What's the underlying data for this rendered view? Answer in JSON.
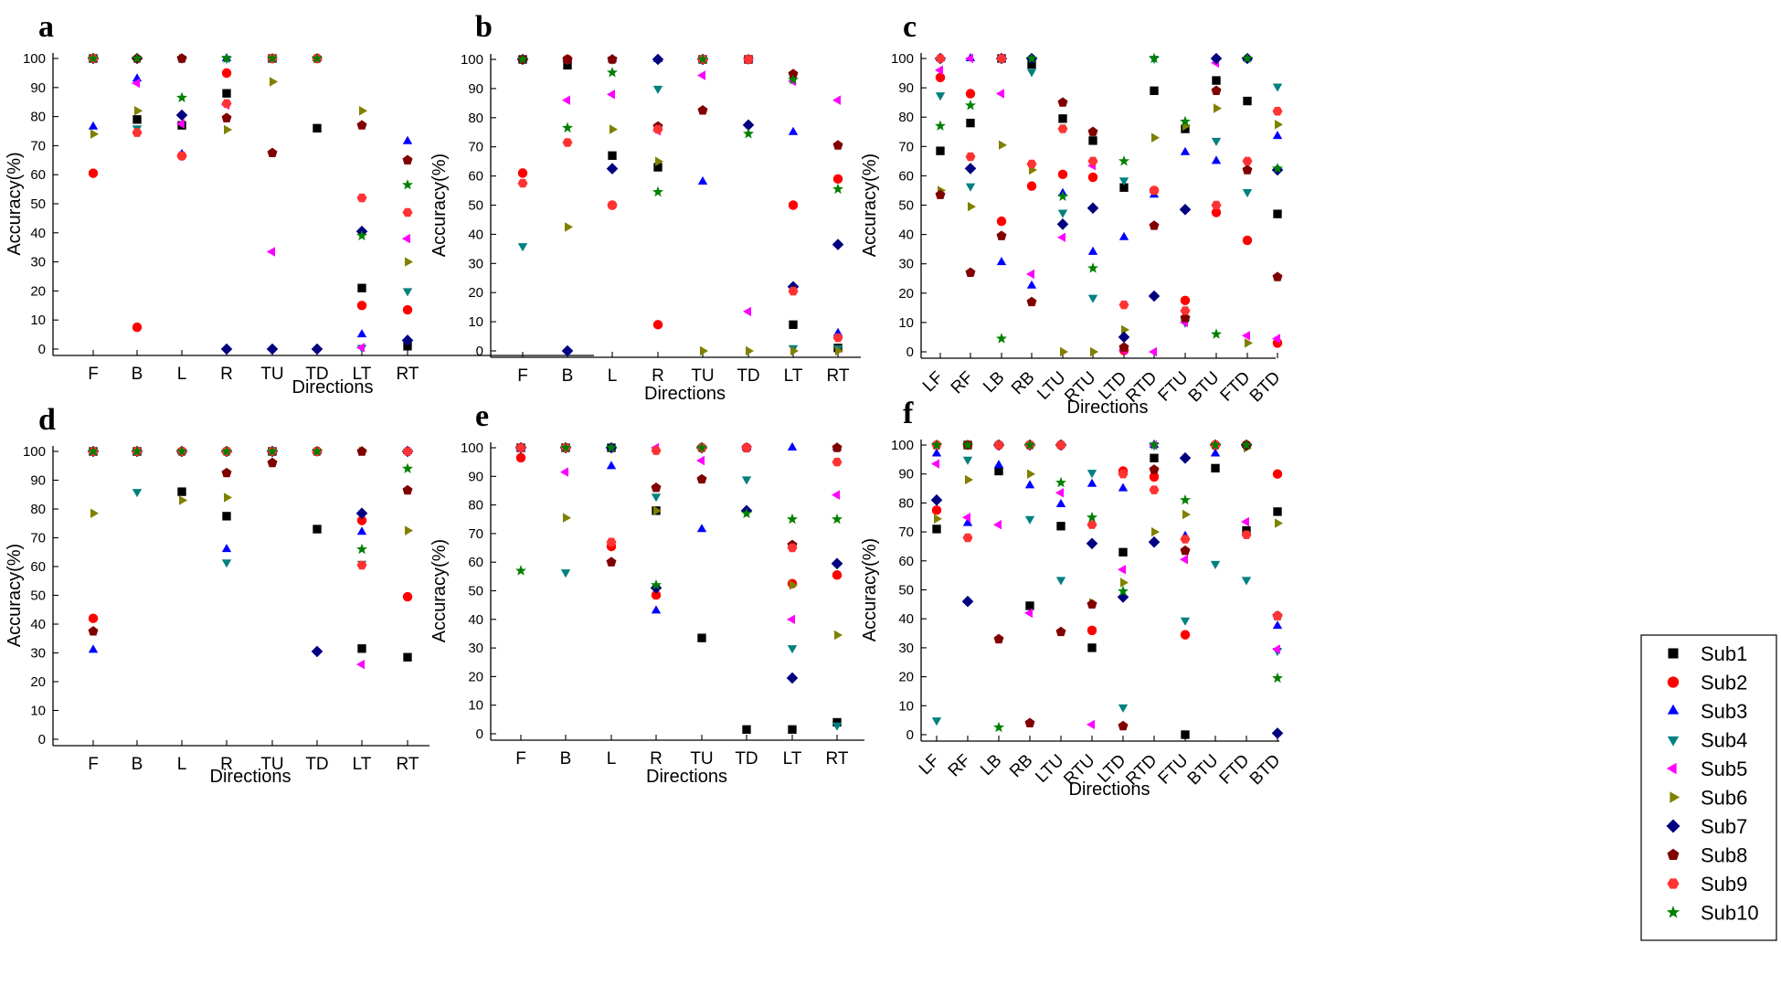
{
  "colors": {
    "Sub1": "#000000",
    "Sub2": "#ff0000",
    "Sub3": "#0000ff",
    "Sub4": "#008080",
    "Sub5": "#ff00ff",
    "Sub6": "#808000",
    "Sub7": "#000080",
    "Sub8": "#800000",
    "Sub9": "#ff3333",
    "Sub10": "#008000"
  },
  "markers": {
    "Sub1": "square",
    "Sub2": "circle",
    "Sub3": "triangle-up",
    "Sub4": "triangle-down",
    "Sub5": "triangle-left",
    "Sub6": "triangle-right",
    "Sub7": "diamond",
    "Sub8": "pentagon",
    "Sub9": "hexagon",
    "Sub10": "star"
  },
  "legend": {
    "placement": "right",
    "entries": [
      "Sub1",
      "Sub2",
      "Sub3",
      "Sub4",
      "Sub5",
      "Sub6",
      "Sub7",
      "Sub8",
      "Sub9",
      "Sub10"
    ]
  },
  "chart_data": [
    {
      "panel": "a",
      "type": "scatter",
      "xlabel": "Directions",
      "ylabel": "Accuracy(%)",
      "ylim": [
        0,
        100
      ],
      "yticks": [
        0,
        10,
        20,
        30,
        40,
        50,
        60,
        70,
        80,
        90,
        100
      ],
      "categories": [
        "F",
        "B",
        "L",
        "R",
        "TU",
        "TD",
        "LT",
        "RT"
      ],
      "series": [
        {
          "name": "Sub1",
          "values": [
            100,
            79,
            77,
            88,
            100,
            76,
            21,
            1
          ]
        },
        {
          "name": "Sub2",
          "values": [
            60.5,
            7.5,
            66.5,
            95,
            100,
            100,
            15,
            13.5
          ]
        },
        {
          "name": "Sub3",
          "values": [
            76.5,
            93,
            67,
            100,
            100,
            100,
            5,
            71.5
          ]
        },
        {
          "name": "Sub4",
          "values": [
            100,
            76,
            100,
            100,
            100,
            100,
            0.5,
            20
          ]
        },
        {
          "name": "Sub5",
          "values": [
            100,
            91.5,
            77.5,
            84,
            33.5,
            100,
            0.5,
            38
          ]
        },
        {
          "name": "Sub6",
          "values": [
            74,
            82,
            100,
            75.5,
            92,
            100,
            82,
            30
          ]
        },
        {
          "name": "Sub7",
          "values": [
            100,
            100,
            80.5,
            0,
            0,
            0,
            40.5,
            3
          ]
        },
        {
          "name": "Sub8",
          "values": [
            100,
            100,
            100,
            79.5,
            67.5,
            100,
            77,
            65
          ]
        },
        {
          "name": "Sub9",
          "values": [
            100,
            74.5,
            66.5,
            84.5,
            100,
            100,
            52,
            47
          ]
        },
        {
          "name": "Sub10",
          "values": [
            100,
            100,
            86.5,
            100,
            100,
            100,
            39,
            56.5
          ]
        }
      ]
    },
    {
      "panel": "b",
      "type": "scatter",
      "xlabel": "Directions",
      "ylabel": "Accuracy(%)",
      "ylim": [
        0,
        100
      ],
      "yticks": [
        0,
        10,
        20,
        30,
        40,
        50,
        60,
        70,
        80,
        90,
        100
      ],
      "categories": [
        "F",
        "B",
        "L",
        "R",
        "TU",
        "TD",
        "LT",
        "RT"
      ],
      "series": [
        {
          "name": "Sub1",
          "values": [
            100,
            98,
            67,
            63,
            100,
            100,
            9,
            1
          ]
        },
        {
          "name": "Sub2",
          "values": [
            61,
            100,
            50,
            9,
            100,
            100,
            50,
            59
          ]
        },
        {
          "name": "Sub3",
          "values": [
            100,
            100,
            100,
            100,
            58,
            100,
            75,
            6
          ]
        },
        {
          "name": "Sub4",
          "values": [
            36,
            100,
            100,
            90,
            100,
            100,
            1,
            1
          ]
        },
        {
          "name": "Sub5",
          "values": [
            100,
            86,
            88,
            75.5,
            94.5,
            13.5,
            92.5,
            86
          ]
        },
        {
          "name": "Sub6",
          "values": [
            100,
            42.5,
            76,
            65,
            0,
            0,
            0,
            0
          ]
        },
        {
          "name": "Sub7",
          "values": [
            100,
            0,
            62.5,
            100,
            100,
            77.5,
            22,
            36.5
          ]
        },
        {
          "name": "Sub8",
          "values": [
            100,
            100,
            100,
            77,
            82.5,
            100,
            95,
            70.5
          ]
        },
        {
          "name": "Sub9",
          "values": [
            57.5,
            71.5,
            50,
            76,
            100,
            100,
            20.5,
            4.5
          ]
        },
        {
          "name": "Sub10",
          "values": [
            100,
            76.5,
            95.5,
            54.5,
            100,
            74.5,
            93,
            55.5
          ]
        }
      ]
    },
    {
      "panel": "c",
      "type": "scatter",
      "xlabel": "Directions",
      "ylabel": "Accuracy(%)",
      "ylim": [
        0,
        100
      ],
      "yticks": [
        0,
        10,
        20,
        30,
        40,
        50,
        60,
        70,
        80,
        90,
        100
      ],
      "categories": [
        "LF",
        "RF",
        "LB",
        "RB",
        "LTU",
        "RTU",
        "LTD",
        "RTD",
        "FTU",
        "BTU",
        "FTD",
        "BTD"
      ],
      "series": [
        {
          "name": "Sub1",
          "values": [
            68.5,
            78,
            100,
            98,
            79.5,
            72,
            56,
            89,
            76,
            92.5,
            85.5,
            47
          ]
        },
        {
          "name": "Sub2",
          "values": [
            93.5,
            88,
            44.5,
            56.5,
            60.5,
            59.5,
            0.5,
            55,
            17.5,
            47.5,
            38,
            3
          ]
        },
        {
          "name": "Sub3",
          "values": [
            100,
            100,
            30.5,
            22.5,
            54,
            34,
            39,
            53.5,
            68,
            65,
            100,
            73.5
          ]
        },
        {
          "name": "Sub4",
          "values": [
            87.5,
            56.5,
            100,
            95.5,
            47.5,
            18.5,
            58.5,
            100,
            10,
            72,
            54.5,
            90.5
          ]
        },
        {
          "name": "Sub5",
          "values": [
            96,
            100,
            88,
            26.5,
            39,
            63.5,
            0.5,
            0,
            10,
            98.5,
            5.5,
            4.5
          ]
        },
        {
          "name": "Sub6",
          "values": [
            55,
            49.5,
            70.5,
            62,
            0,
            0,
            7.5,
            73,
            77,
            83,
            3,
            77.5
          ]
        },
        {
          "name": "Sub7",
          "values": [
            100,
            62.5,
            100,
            100,
            43.5,
            49,
            5,
            19,
            48.5,
            100,
            100,
            62
          ]
        },
        {
          "name": "Sub8",
          "values": [
            53.5,
            27,
            39.5,
            17,
            85,
            75,
            1.5,
            43,
            11.5,
            89,
            62,
            25.5
          ]
        },
        {
          "name": "Sub9",
          "values": [
            100,
            66.5,
            100,
            64,
            76,
            65,
            16,
            55,
            14,
            50,
            65,
            82
          ]
        },
        {
          "name": "Sub10",
          "values": [
            77,
            84,
            4.5,
            100,
            53,
            28.5,
            65,
            100,
            78.5,
            6,
            100,
            62.5
          ]
        }
      ]
    },
    {
      "panel": "d",
      "type": "scatter",
      "xlabel": "Directions",
      "ylabel": "Accuracy(%)",
      "ylim": [
        0,
        100
      ],
      "yticks": [
        0,
        10,
        20,
        30,
        40,
        50,
        60,
        70,
        80,
        90,
        100
      ],
      "categories": [
        "F",
        "B",
        "L",
        "R",
        "TU",
        "TD",
        "LT",
        "RT"
      ],
      "series": [
        {
          "name": "Sub1",
          "values": [
            100,
            100,
            86,
            77.5,
            100,
            73,
            31.5,
            28.5
          ]
        },
        {
          "name": "Sub2",
          "values": [
            42,
            100,
            100,
            100,
            100,
            100,
            76,
            49.5
          ]
        },
        {
          "name": "Sub3",
          "values": [
            31,
            100,
            100,
            66,
            100,
            100,
            72,
            100
          ]
        },
        {
          "name": "Sub4",
          "values": [
            100,
            86,
            100,
            61.5,
            100,
            100,
            61,
            100
          ]
        },
        {
          "name": "Sub5",
          "values": [
            100,
            100,
            100,
            100,
            100,
            100,
            26,
            100
          ]
        },
        {
          "name": "Sub6",
          "values": [
            78.5,
            100,
            83,
            84,
            100,
            100,
            100,
            72.5
          ]
        },
        {
          "name": "Sub7",
          "values": [
            100,
            100,
            100,
            100,
            100,
            30.5,
            78.5,
            100
          ]
        },
        {
          "name": "Sub8",
          "values": [
            37.5,
            100,
            100,
            92.5,
            96,
            100,
            100,
            86.5
          ]
        },
        {
          "name": "Sub9",
          "values": [
            100,
            100,
            100,
            100,
            100,
            100,
            60.5,
            100
          ]
        },
        {
          "name": "Sub10",
          "values": [
            100,
            100,
            100,
            100,
            100,
            100,
            66,
            94
          ]
        }
      ]
    },
    {
      "panel": "e",
      "type": "scatter",
      "xlabel": "Directions",
      "ylabel": "Accuracy(%)",
      "ylim": [
        0,
        100
      ],
      "yticks": [
        0,
        10,
        20,
        30,
        40,
        50,
        60,
        70,
        80,
        90,
        100
      ],
      "categories": [
        "F",
        "B",
        "L",
        "R",
        "TU",
        "TD",
        "LT",
        "RT"
      ],
      "series": [
        {
          "name": "Sub1",
          "values": [
            100,
            100,
            100,
            78,
            33.5,
            1.5,
            1.5,
            4
          ]
        },
        {
          "name": "Sub2",
          "values": [
            96.5,
            100,
            65.5,
            48.5,
            100,
            100,
            52.5,
            55.5
          ]
        },
        {
          "name": "Sub3",
          "values": [
            100,
            100,
            93.5,
            43,
            71.5,
            100,
            100,
            100
          ]
        },
        {
          "name": "Sub4",
          "values": [
            100,
            56.5,
            100,
            83,
            100,
            89,
            30,
            3
          ]
        },
        {
          "name": "Sub5",
          "values": [
            100,
            91.5,
            100,
            100,
            95.5,
            100,
            40,
            83.5
          ]
        },
        {
          "name": "Sub6",
          "values": [
            100,
            75.5,
            100,
            78,
            100,
            100,
            52,
            34.5
          ]
        },
        {
          "name": "Sub7",
          "values": [
            100,
            100,
            100,
            51,
            100,
            78,
            19.5,
            59.5
          ]
        },
        {
          "name": "Sub8",
          "values": [
            100,
            100,
            60,
            86,
            89,
            100,
            66,
            100
          ]
        },
        {
          "name": "Sub9",
          "values": [
            100,
            100,
            67,
            99,
            100,
            100,
            65,
            95
          ]
        },
        {
          "name": "Sub10",
          "values": [
            57,
            100,
            100,
            52,
            100,
            77,
            75,
            75
          ]
        }
      ]
    },
    {
      "panel": "f",
      "type": "scatter",
      "xlabel": "Directions",
      "ylabel": "Accuracy(%)",
      "ylim": [
        0,
        100
      ],
      "yticks": [
        0,
        10,
        20,
        30,
        40,
        50,
        60,
        70,
        80,
        90,
        100
      ],
      "categories": [
        "LF",
        "RF",
        "LB",
        "RB",
        "LTU",
        "RTU",
        "LTD",
        "RTD",
        "FTU",
        "BTU",
        "FTD",
        "BTD"
      ],
      "series": [
        {
          "name": "Sub1",
          "values": [
            71,
            100,
            91,
            44.5,
            72,
            30,
            63,
            95.5,
            0,
            92,
            70.5,
            77
          ]
        },
        {
          "name": "Sub2",
          "values": [
            77.5,
            100,
            100,
            100,
            100,
            36,
            91,
            89,
            34.5,
            100,
            100,
            90
          ]
        },
        {
          "name": "Sub3",
          "values": [
            97,
            73,
            93,
            86,
            79.5,
            86.5,
            85,
            100,
            68.5,
            97,
            100,
            37.5
          ]
        },
        {
          "name": "Sub4",
          "values": [
            5,
            95,
            100,
            74.5,
            53.5,
            90.5,
            9.5,
            100,
            39.5,
            59,
            53.5,
            29
          ]
        },
        {
          "name": "Sub5",
          "values": [
            93.5,
            75,
            72.5,
            42,
            83.5,
            3.5,
            57,
            100,
            60.5,
            100,
            73.5,
            29.5
          ]
        },
        {
          "name": "Sub6",
          "values": [
            74.5,
            88,
            100,
            90,
            100,
            45.5,
            52.5,
            70,
            76,
            100,
            99,
            73
          ]
        },
        {
          "name": "Sub7",
          "values": [
            81,
            46,
            100,
            100,
            100,
            66,
            47.5,
            66.5,
            95.5,
            100,
            100,
            0.5
          ]
        },
        {
          "name": "Sub8",
          "values": [
            100,
            100,
            33,
            4,
            35.5,
            45,
            3,
            91.5,
            63.5,
            100,
            100,
            41
          ]
        },
        {
          "name": "Sub9",
          "values": [
            100,
            68,
            100,
            100,
            100,
            72.5,
            90,
            84.5,
            67.5,
            100,
            69,
            41
          ]
        },
        {
          "name": "Sub10",
          "values": [
            100,
            100,
            2.5,
            100,
            87,
            75,
            49.5,
            100,
            81,
            100,
            100,
            19.5
          ]
        }
      ]
    }
  ]
}
